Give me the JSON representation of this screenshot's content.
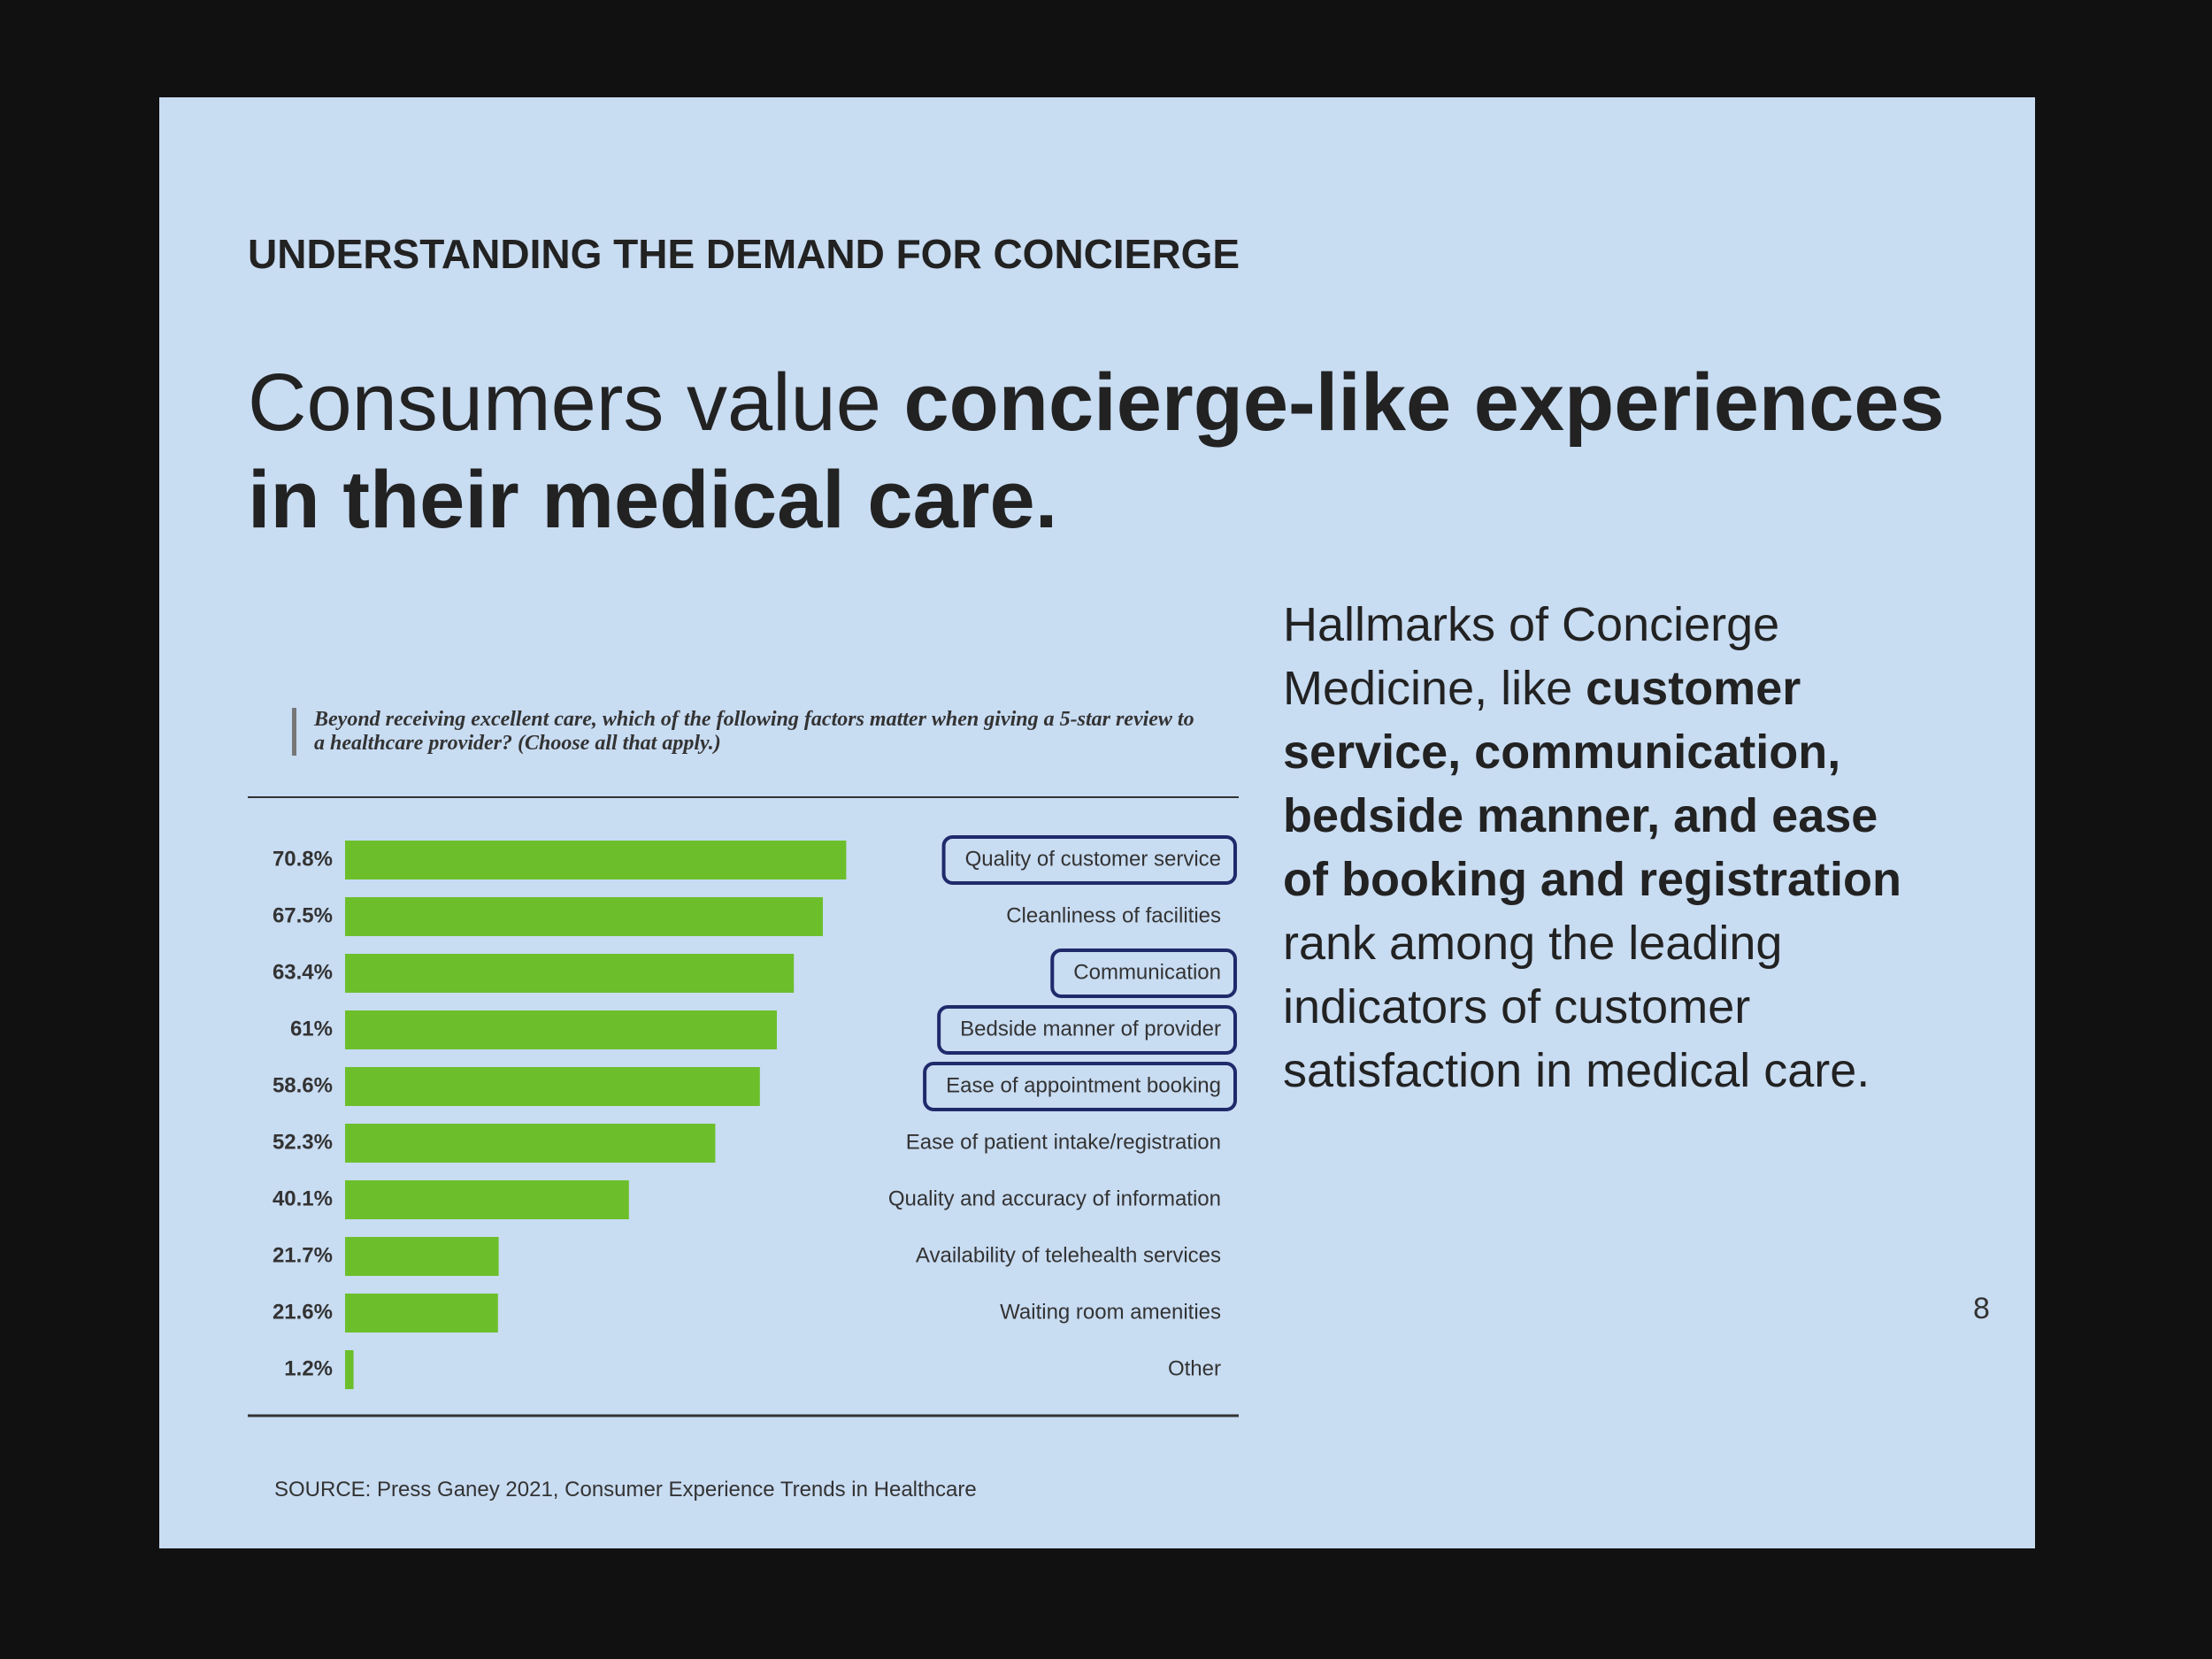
{
  "header": "UNDERSTANDING THE DEMAND FOR CONCIERGE",
  "title": {
    "regular": "Consumers value",
    "bold": "concierge-like experiences in their medical care."
  },
  "chart_data": {
    "type": "hbar",
    "question": "Beyond receiving excellent care, which of the following factors matter when giving a 5-star review to a healthcare provider? (Choose all that apply.)",
    "categories": [
      "Quality of customer service",
      "Cleanliness of facilities",
      "Communication",
      "Bedside manner of provider",
      "Ease of appointment booking",
      "Ease of patient intake/registration",
      "Quality and accuracy of information",
      "Availability of telehealth services",
      "Waiting room amenities",
      "Other"
    ],
    "values": [
      70.8,
      67.5,
      63.4,
      61,
      58.6,
      52.3,
      40.1,
      21.7,
      21.6,
      1.2
    ],
    "value_labels": [
      "70.8%",
      "67.5%",
      "63.4%",
      "61%",
      "58.6%",
      "52.3%",
      "40.1%",
      "21.7%",
      "21.6%",
      "1.2%"
    ],
    "highlighted": [
      true,
      false,
      true,
      true,
      true,
      false,
      false,
      false,
      false,
      false
    ],
    "color": "#6cbf2b"
  },
  "side_text": {
    "intro": "Hallmarks of Concierge Medicine, like",
    "bold": "customer service, communication, bedside manner, and ease of booking and registration",
    "outro": "rank among the leading indicators of customer satisfaction in medical care."
  },
  "source": "SOURCE: Press Ganey 2021, Consumer Experience Trends in Healthcare",
  "page_number": "8"
}
